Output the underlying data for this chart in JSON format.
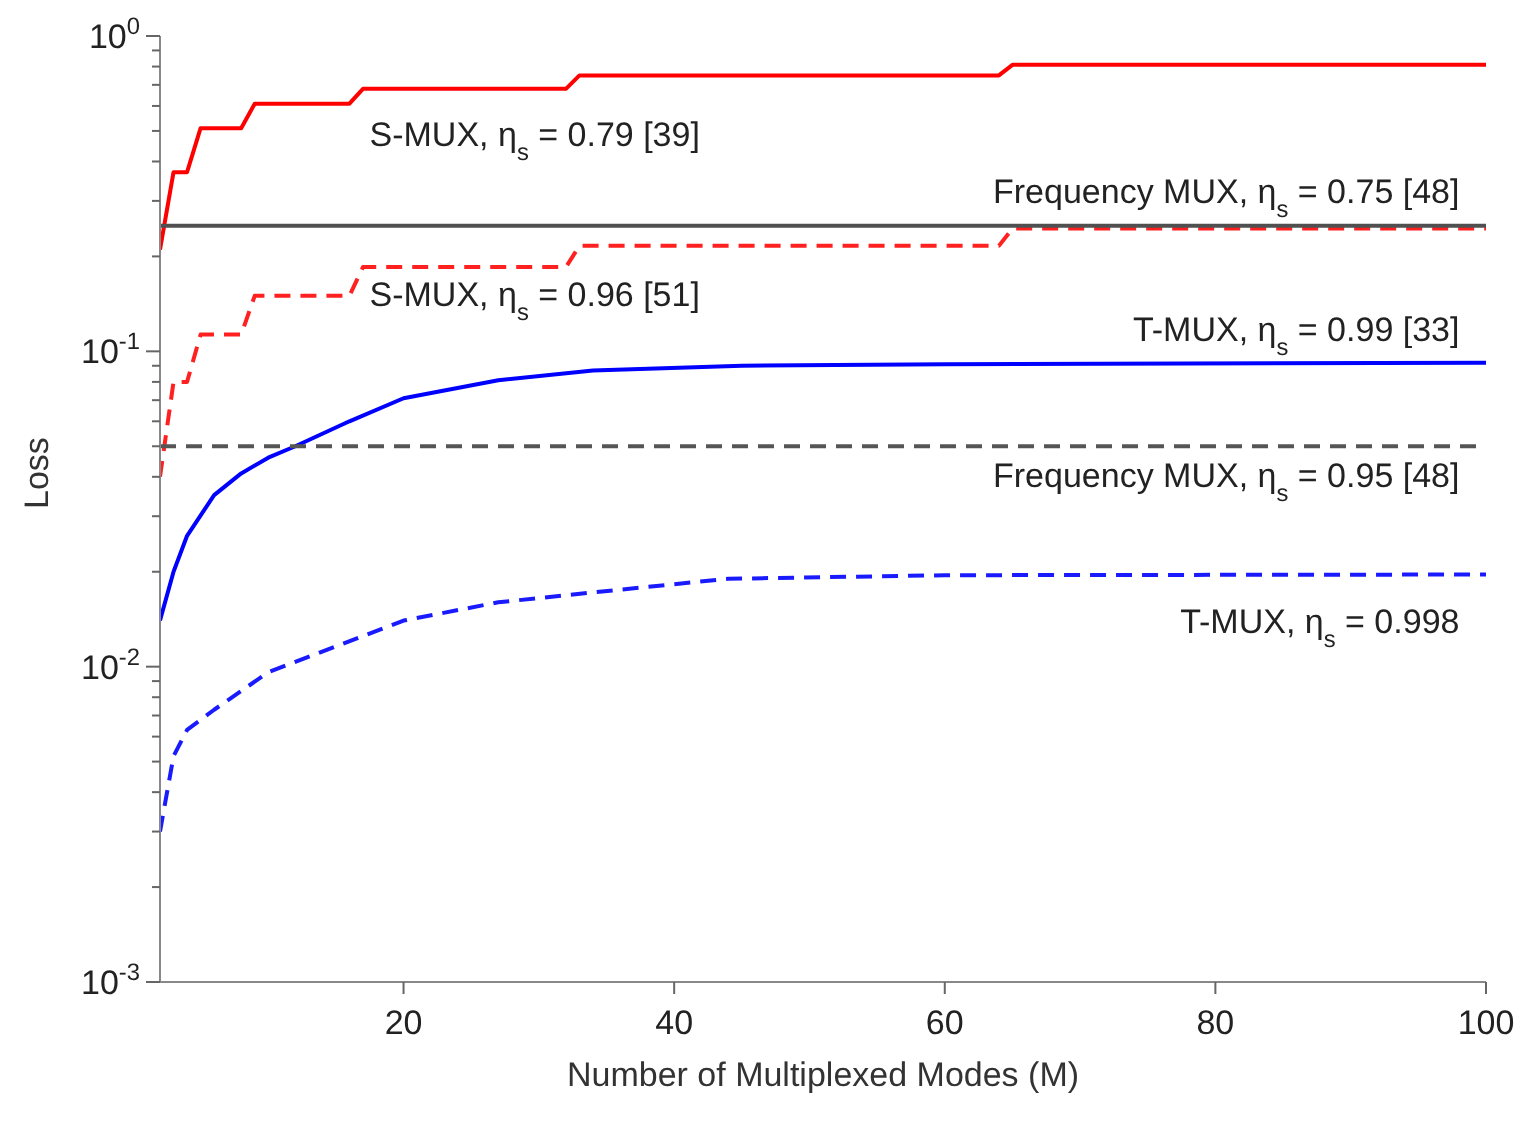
{
  "chart_data": {
    "type": "line",
    "xlabel": "Number of Multiplexed Modes (M)",
    "ylabel": "Loss",
    "log": "y",
    "marker": "none",
    "xlim": [
      2,
      100
    ],
    "xticks": [
      20,
      40,
      60,
      80,
      100
    ],
    "ylim": [
      0.001,
      1
    ],
    "yticks": [
      {
        "value": 0.001,
        "label": "10$^{-3}$"
      },
      {
        "value": 0.002,
        "label": null
      },
      {
        "value": 0.003,
        "label": null
      },
      {
        "value": 0.004,
        "label": null
      },
      {
        "value": 0.005,
        "label": null
      },
      {
        "value": 0.006,
        "label": null
      },
      {
        "value": 0.007,
        "label": null
      },
      {
        "value": 0.008,
        "label": null
      },
      {
        "value": 0.009,
        "label": null
      },
      {
        "value": 0.01,
        "label": "10$^{-2}$"
      },
      {
        "value": 0.02,
        "label": null
      },
      {
        "value": 0.03,
        "label": null
      },
      {
        "value": 0.04,
        "label": null
      },
      {
        "value": 0.05,
        "label": null
      },
      {
        "value": 0.06,
        "label": null
      },
      {
        "value": 0.07,
        "label": null
      },
      {
        "value": 0.08,
        "label": null
      },
      {
        "value": 0.09,
        "label": null
      },
      {
        "value": 0.1,
        "label": "10$^{-1}$"
      },
      {
        "value": 0.2,
        "label": null
      },
      {
        "value": 0.3,
        "label": null
      },
      {
        "value": 0.4,
        "label": null
      },
      {
        "value": 0.5,
        "label": null
      },
      {
        "value": 0.6,
        "label": null
      },
      {
        "value": 0.7,
        "label": null
      },
      {
        "value": 0.8,
        "label": null
      },
      {
        "value": 0.9,
        "label": null
      },
      {
        "value": 1,
        "label": "10$^{0}$"
      }
    ],
    "series": [
      {
        "name": "S-MUX, η$_{s}$ = 0.79 [39]",
        "color": "#ff0000",
        "line_style": "solid",
        "x": [
          2,
          3,
          4,
          5,
          8,
          9,
          16,
          17,
          32,
          33,
          64,
          65,
          100
        ],
        "values": [
          0.21,
          0.37,
          0.37,
          0.51,
          0.51,
          0.61,
          0.61,
          0.68,
          0.68,
          0.75,
          0.75,
          0.81,
          0.81
        ]
      },
      {
        "name": "S-MUX, η$_{s}$ = 0.96 [51]",
        "color": "#ff2020",
        "line_style": "dashed",
        "x": [
          2,
          3,
          4,
          5,
          8,
          9,
          16,
          17,
          32,
          33,
          64,
          65,
          100
        ],
        "values": [
          0.04,
          0.08,
          0.08,
          0.113,
          0.113,
          0.15,
          0.15,
          0.185,
          0.185,
          0.216,
          0.216,
          0.245,
          0.245
        ]
      },
      {
        "name": "T-MUX, η$_{s}$ = 0.99 [33]",
        "color": "#0000ff",
        "line_style": "solid",
        "x": [
          2,
          3,
          4,
          6,
          8,
          10,
          12,
          16,
          20,
          27,
          34,
          45,
          60,
          100
        ],
        "values": [
          0.014,
          0.02,
          0.026,
          0.035,
          0.041,
          0.046,
          0.05,
          0.06,
          0.071,
          0.081,
          0.087,
          0.09,
          0.091,
          0.092
        ]
      },
      {
        "name": "T-MUX, η$_{s}$ = 0.998",
        "color": "#1a1aff",
        "line_style": "dashed",
        "x": [
          2,
          3,
          4,
          6,
          10,
          15,
          20,
          27,
          34,
          44,
          60,
          100
        ],
        "values": [
          0.003,
          0.0052,
          0.0063,
          0.0073,
          0.0096,
          0.0116,
          0.014,
          0.016,
          0.0172,
          0.019,
          0.0195,
          0.0196
        ]
      },
      {
        "name": "Frequency MUX, η$_{s}$ = 0.75 [48]",
        "color": "#505050",
        "line_style": "solid",
        "x": [
          2,
          100
        ],
        "values": [
          0.25,
          0.25
        ]
      },
      {
        "name": "Frequency MUX, η$_{s}$ = 0.95 [48]",
        "color": "#555555",
        "line_style": "dashed",
        "x": [
          2,
          100
        ],
        "values": [
          0.05,
          0.05
        ]
      }
    ]
  }
}
